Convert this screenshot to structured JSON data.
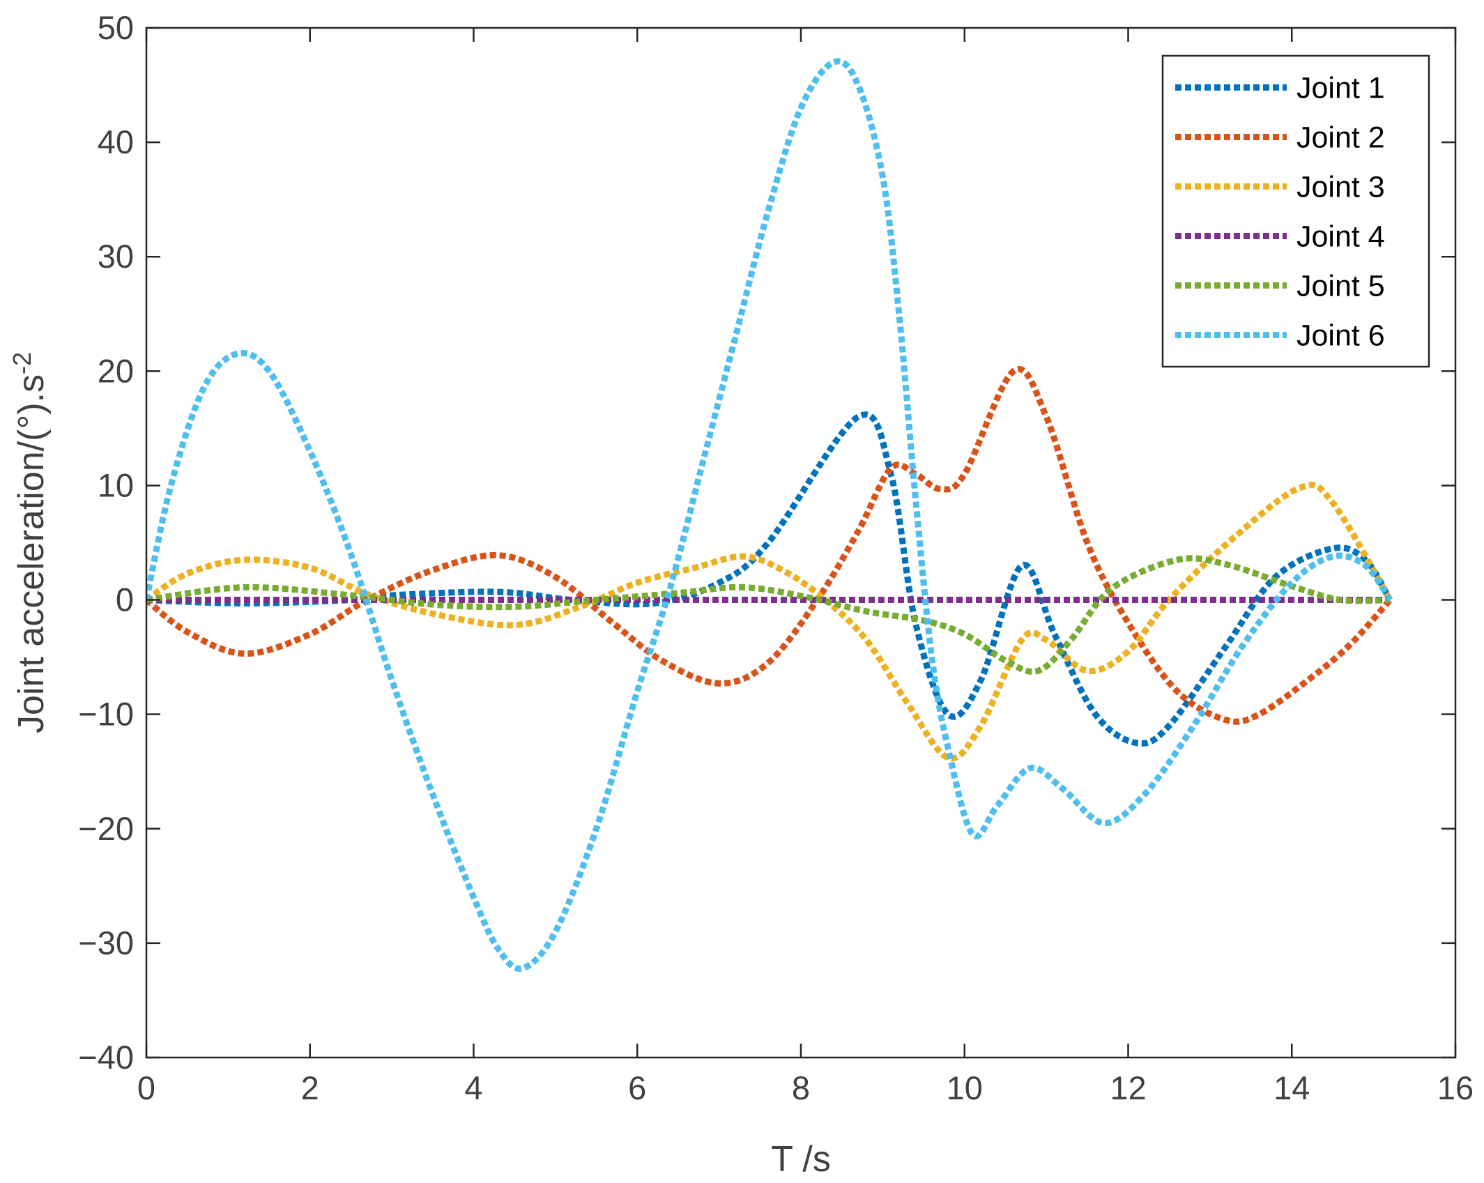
{
  "chart_data": {
    "type": "line",
    "xlabel": "T /s",
    "ylabel": "Joint acceleration/(°).s^-2",
    "xlim": [
      0,
      16
    ],
    "ylim": [
      -40,
      50
    ],
    "xticks": [
      0,
      2,
      4,
      6,
      8,
      10,
      12,
      14,
      16
    ],
    "yticks": [
      -40,
      -30,
      -20,
      -10,
      0,
      10,
      20,
      30,
      40,
      50
    ],
    "xtick_labels": [
      "0",
      "2",
      "4",
      "6",
      "8",
      "10",
      "12",
      "14",
      "16"
    ],
    "ytick_labels": [
      "−40",
      "−30",
      "−20",
      "−10",
      "0",
      "10",
      "20",
      "30",
      "40",
      "50"
    ],
    "grid": false,
    "legend_position": "top-right",
    "line_style": "dotted",
    "series": [
      {
        "name": "Joint 1",
        "color": "#0072BD",
        "points": [
          [
            0,
            0
          ],
          [
            1.2,
            -0.3
          ],
          [
            2.5,
            0
          ],
          [
            3,
            0.4
          ],
          [
            4.3,
            0.7
          ],
          [
            5.2,
            0
          ],
          [
            6.2,
            -0.3
          ],
          [
            7,
            1.5
          ],
          [
            7.6,
            5
          ],
          [
            8.7,
            16
          ],
          [
            9.1,
            11
          ],
          [
            9.4,
            -2
          ],
          [
            9.8,
            -10
          ],
          [
            10.2,
            -7
          ],
          [
            10.7,
            3
          ],
          [
            11.1,
            -3
          ],
          [
            11.6,
            -10
          ],
          [
            12.1,
            -12.5
          ],
          [
            12.5,
            -11
          ],
          [
            13.2,
            -4
          ],
          [
            13.8,
            2
          ],
          [
            14.5,
            4.5
          ],
          [
            14.9,
            3.5
          ],
          [
            15.2,
            0
          ]
        ]
      },
      {
        "name": "Joint 2",
        "color": "#D95319",
        "points": [
          [
            0,
            0
          ],
          [
            0.5,
            -2.8
          ],
          [
            1.2,
            -4.7
          ],
          [
            2,
            -3
          ],
          [
            2.7,
            0
          ],
          [
            3.5,
            2.6
          ],
          [
            4.3,
            3.9
          ],
          [
            5,
            2
          ],
          [
            5.7,
            -2
          ],
          [
            6.3,
            -5.3
          ],
          [
            7,
            -7.3
          ],
          [
            7.6,
            -5.5
          ],
          [
            8.2,
            0
          ],
          [
            8.7,
            6
          ],
          [
            9.1,
            11.5
          ],
          [
            9.4,
            11
          ],
          [
            9.7,
            9.7
          ],
          [
            10,
            11
          ],
          [
            10.6,
            20
          ],
          [
            11,
            16
          ],
          [
            11.5,
            5
          ],
          [
            12,
            -2
          ],
          [
            12.6,
            -8
          ],
          [
            13.2,
            -10.5
          ],
          [
            13.6,
            -10
          ],
          [
            14.2,
            -7
          ],
          [
            14.7,
            -4
          ],
          [
            15.2,
            0
          ]
        ]
      },
      {
        "name": "Joint 3",
        "color": "#EDB120",
        "points": [
          [
            0,
            0
          ],
          [
            0.5,
            2.3
          ],
          [
            1.2,
            3.5
          ],
          [
            2,
            2.8
          ],
          [
            2.7,
            0.5
          ],
          [
            3.5,
            -1.2
          ],
          [
            4.5,
            -2.2
          ],
          [
            5.3,
            -0.6
          ],
          [
            6,
            1.5
          ],
          [
            6.7,
            2.8
          ],
          [
            7.3,
            3.8
          ],
          [
            7.8,
            2.5
          ],
          [
            8.3,
            0
          ],
          [
            8.8,
            -3.5
          ],
          [
            9.3,
            -9
          ],
          [
            9.8,
            -13.8
          ],
          [
            10.2,
            -11
          ],
          [
            10.7,
            -3.5
          ],
          [
            11,
            -3.5
          ],
          [
            11.5,
            -6.2
          ],
          [
            12,
            -4.5
          ],
          [
            12.5,
            0
          ],
          [
            13.3,
            5.5
          ],
          [
            14.1,
            9.8
          ],
          [
            14.5,
            8.5
          ],
          [
            15.2,
            0
          ]
        ]
      },
      {
        "name": "Joint 4",
        "color": "#7E2F8E",
        "points": [
          [
            0,
            0
          ],
          [
            15.2,
            0
          ]
        ]
      },
      {
        "name": "Joint 5",
        "color": "#77AC30",
        "points": [
          [
            0,
            0
          ],
          [
            1.2,
            1.1
          ],
          [
            2.5,
            0.4
          ],
          [
            3.5,
            -0.4
          ],
          [
            4.5,
            -0.6
          ],
          [
            5.5,
            0
          ],
          [
            6.5,
            0.6
          ],
          [
            7.3,
            1.1
          ],
          [
            8.1,
            0.2
          ],
          [
            8.8,
            -1
          ],
          [
            9.5,
            -1.8
          ],
          [
            10,
            -3
          ],
          [
            10.5,
            -5.3
          ],
          [
            10.9,
            -6.2
          ],
          [
            11.3,
            -3.5
          ],
          [
            11.8,
            1
          ],
          [
            12.6,
            3.5
          ],
          [
            13.2,
            3.1
          ],
          [
            14,
            1.2
          ],
          [
            14.6,
            0
          ],
          [
            15.2,
            0
          ]
        ]
      },
      {
        "name": "Joint 6",
        "color": "#4DBEEE",
        "points": [
          [
            0,
            0
          ],
          [
            0.3,
            10
          ],
          [
            0.7,
            18.5
          ],
          [
            1.1,
            21.5
          ],
          [
            1.5,
            20
          ],
          [
            2,
            13
          ],
          [
            2.5,
            4
          ],
          [
            3,
            -7
          ],
          [
            3.5,
            -17
          ],
          [
            4,
            -26
          ],
          [
            4.3,
            -30.5
          ],
          [
            4.6,
            -32.2
          ],
          [
            5,
            -29
          ],
          [
            5.5,
            -20
          ],
          [
            6,
            -8
          ],
          [
            6.4,
            1
          ],
          [
            6.8,
            12
          ],
          [
            7.2,
            23
          ],
          [
            7.6,
            34
          ],
          [
            8,
            43
          ],
          [
            8.4,
            47
          ],
          [
            8.7,
            45
          ],
          [
            9,
            37
          ],
          [
            9.2,
            25
          ],
          [
            9.4,
            9
          ],
          [
            9.6,
            -5
          ],
          [
            9.8,
            -13
          ],
          [
            10.1,
            -20.5
          ],
          [
            10.4,
            -18
          ],
          [
            10.8,
            -14.7
          ],
          [
            11.2,
            -16.5
          ],
          [
            11.7,
            -19.5
          ],
          [
            12.2,
            -17
          ],
          [
            12.8,
            -11
          ],
          [
            13.4,
            -4
          ],
          [
            14,
            1.5
          ],
          [
            14.5,
            3.8
          ],
          [
            14.9,
            3
          ],
          [
            15.2,
            0
          ]
        ]
      }
    ]
  }
}
